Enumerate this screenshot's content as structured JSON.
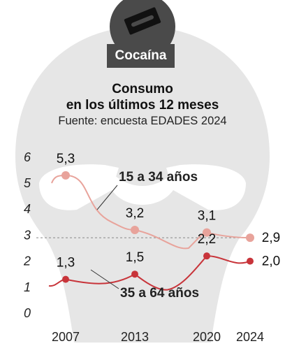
{
  "badge": {
    "label": "Cocaína",
    "icon": "razor-blade-icon"
  },
  "chart_data": {
    "type": "line",
    "title": "Consumo en los últimos 12 meses",
    "title_lines": [
      "Consumo",
      "en los últimos 12 meses"
    ],
    "subtitle": "Fuente: encuesta EDADES 2024",
    "xlabel": "",
    "ylabel": "",
    "x": [
      2007,
      2013,
      2020,
      2024
    ],
    "x_tick_labels": [
      "2007",
      "2013",
      "2020",
      "2024"
    ],
    "ylim": [
      0,
      6
    ],
    "y_tick_labels": [
      "0",
      "1",
      "2",
      "3",
      "4",
      "5",
      "6"
    ],
    "grid": false,
    "series": [
      {
        "name": "15 a 34 años",
        "color": "#e8a39b",
        "values": [
          5.3,
          3.2,
          3.1,
          2.9
        ],
        "labels": [
          "5,3",
          "3,2",
          "3,1",
          "2,9"
        ]
      },
      {
        "name": "35 a 64 años",
        "color": "#c8343a",
        "values": [
          1.3,
          1.5,
          2.2,
          2.0
        ],
        "labels": [
          "1,3",
          "1,5",
          "2,2",
          "2,0"
        ]
      }
    ],
    "reference_line": {
      "value": 2.9,
      "style": "dashed"
    }
  },
  "colors": {
    "background_shape": "#e6e6e6",
    "badge": "#4a4a4a",
    "text": "#111111"
  }
}
